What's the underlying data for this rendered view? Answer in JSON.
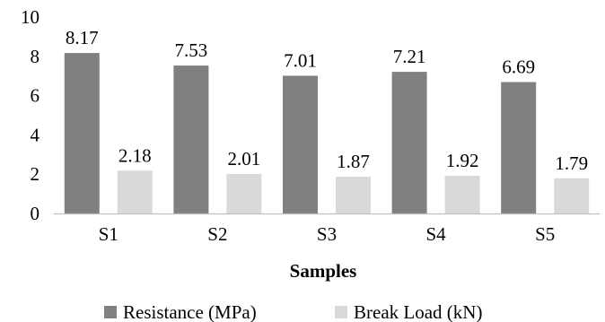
{
  "chart_data": {
    "type": "bar",
    "title": "",
    "xlabel": "Samples",
    "ylabel": "",
    "ylim": [
      0,
      10
    ],
    "yticks": [
      "0",
      "2",
      "4",
      "6",
      "8",
      "10"
    ],
    "grid": false,
    "legend_position": "bottom",
    "categories": [
      "S1",
      "S2",
      "S3",
      "S4",
      "S5"
    ],
    "series": [
      {
        "name": "Resistance (MPa)",
        "color": "#808080",
        "values": [
          8.17,
          7.53,
          7.01,
          7.21,
          6.69
        ],
        "labels": [
          "8.17",
          "7.53",
          "7.01",
          "7.21",
          "6.69"
        ]
      },
      {
        "name": "Break Load (kN)",
        "color": "#d9d9d9",
        "values": [
          2.18,
          2.01,
          1.87,
          1.92,
          1.79
        ],
        "labels": [
          "2.18",
          "2.01",
          "1.87",
          "1.92",
          "1.79"
        ]
      }
    ]
  }
}
